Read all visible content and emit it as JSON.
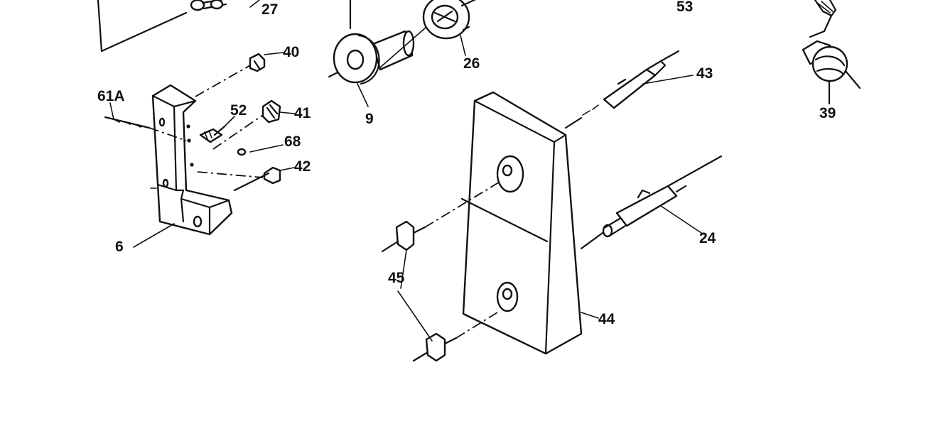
{
  "callouts": {
    "p27": "27",
    "p53": "53",
    "p40": "40",
    "p26": "26",
    "p61a": "61A",
    "p9": "9",
    "p43": "43",
    "p52": "52",
    "p41": "41",
    "p39": "39",
    "p68": "68",
    "p42": "42",
    "p24": "24",
    "p6": "6",
    "p45": "45",
    "p44": "44"
  }
}
